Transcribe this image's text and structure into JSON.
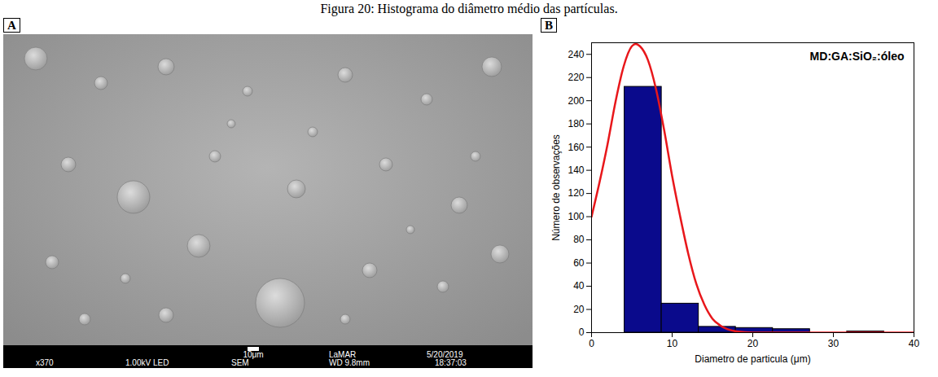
{
  "title": "Figura 20: Histograma do diâmetro médio das partículas.",
  "image_panel": {
    "letter": "A",
    "footer": [
      "x370",
      "1.00kV LED",
      "SEM",
      "WD 9.8mm",
      "18:37:03"
    ],
    "footer_top": [
      "10μm",
      "LaMAR",
      "5/20/2019"
    ]
  },
  "chart_data": {
    "type": "histogram",
    "letter": "B",
    "annotation": "MD:GA:SiO₂:óleo",
    "xlabel": "Diametro de particula (μm)",
    "ylabel": "Número de observações",
    "bins": [
      4.1,
      8.7,
      13.3,
      17.9,
      22.5,
      27.1,
      31.7,
      36.3
    ],
    "counts": [
      212,
      25,
      5,
      4,
      3,
      0,
      1
    ],
    "color": "#0a0a8c",
    "curve": {
      "color": "#e8171b",
      "x": [
        0,
        1,
        2,
        3,
        4,
        5,
        5.5,
        6,
        7,
        8,
        9,
        10,
        11,
        12,
        13,
        14,
        15,
        16,
        18,
        20,
        25,
        30,
        40
      ],
      "values": [
        100,
        130,
        163,
        200,
        230,
        247,
        249,
        247,
        235,
        210,
        175,
        135,
        100,
        68,
        42,
        24,
        12,
        6,
        1,
        0,
        0,
        0,
        0
      ]
    },
    "xlim": [
      0,
      40
    ],
    "ylim": [
      0,
      250
    ],
    "xticks": [
      0,
      10,
      20,
      30,
      40
    ],
    "yticks": [
      0,
      20,
      40,
      60,
      80,
      100,
      120,
      140,
      160,
      180,
      200,
      220,
      240
    ]
  }
}
